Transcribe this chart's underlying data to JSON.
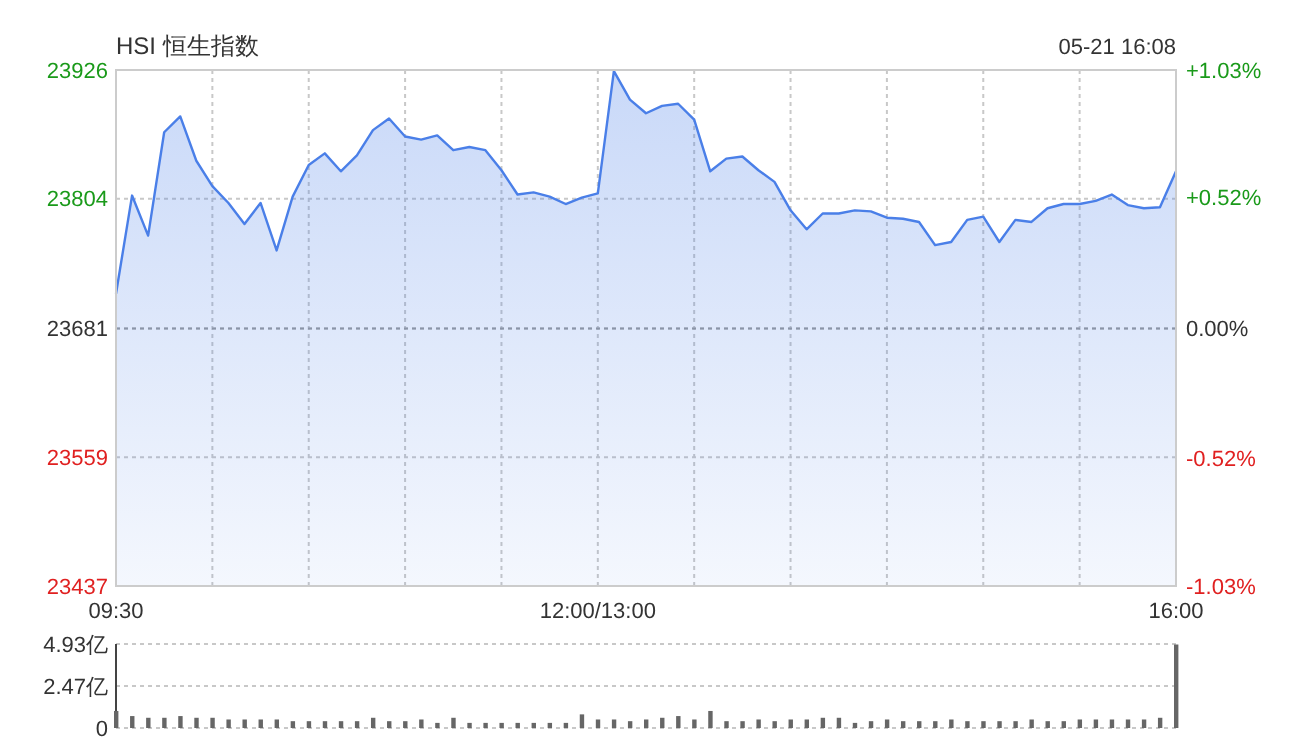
{
  "chart_data": [
    {
      "type": "area",
      "title": "HSI 恒生指数",
      "annotations": [
        "05-21 16:08"
      ],
      "categories": [
        "09:30",
        null,
        null,
        null,
        null,
        null,
        null,
        null,
        null,
        null,
        null,
        null,
        null,
        null,
        null,
        null,
        null,
        null,
        null,
        null,
        null,
        null,
        null,
        null,
        null,
        null,
        null,
        null,
        null,
        null,
        "12:00/13:00",
        null,
        null,
        null,
        null,
        null,
        null,
        null,
        null,
        null,
        null,
        null,
        null,
        null,
        null,
        null,
        null,
        null,
        null,
        null,
        null,
        null,
        null,
        null,
        null,
        null,
        null,
        null,
        null,
        null,
        null,
        null,
        null,
        null,
        null,
        null,
        "16:00"
      ],
      "ylim": [
        23437,
        23926
      ],
      "yticks": [
        23437,
        23559,
        23681,
        23804,
        23926
      ],
      "y2lim": [
        -1.03,
        1.03
      ],
      "y2ticks": [
        {
          "value": -1.03,
          "label": "-1.03%"
        },
        {
          "value": -0.52,
          "label": "-0.52%"
        },
        {
          "value": 0,
          "label": "0.00%"
        },
        {
          "value": 0.52,
          "label": "+0.52%"
        },
        {
          "value": 1.03,
          "label": "+1.03%"
        }
      ],
      "grid": true,
      "ref_lines": [
        {
          "axis": "y",
          "value": 23681,
          "color": "#999999",
          "line_style": "dotted"
        }
      ],
      "series": [
        {
          "color": "#4a7fe8",
          "values": [
            23714,
            23807,
            23769,
            23867,
            23882,
            23840,
            23816,
            23800,
            23780,
            23800,
            23755,
            23806,
            23836,
            23847,
            23830,
            23845,
            23869,
            23880,
            23863,
            23860,
            23864,
            23850,
            23853,
            23850,
            23831,
            23808,
            23810,
            23806,
            23799,
            23805,
            23809,
            23925,
            23898,
            23885,
            23892,
            23894,
            23879,
            23830,
            23842,
            23844,
            23831,
            23820,
            23793,
            23775,
            23790,
            23790,
            23793,
            23792,
            23786,
            23785,
            23782,
            23760,
            23763,
            23784,
            23787,
            23763,
            23784,
            23782,
            23795,
            23799,
            23799,
            23802,
            23808,
            23798,
            23795,
            23796,
            23830
          ]
        }
      ]
    },
    {
      "type": "bar",
      "color": "#666666",
      "tick_labels": "y",
      "grid": "y",
      "categories": [
        null,
        null,
        null,
        null,
        null,
        null,
        null,
        null,
        null,
        null,
        null,
        null,
        null,
        null,
        null,
        null,
        null,
        null,
        null,
        null,
        null,
        null,
        null,
        null,
        null,
        null,
        null,
        null,
        null,
        null,
        null,
        null,
        null,
        null,
        null,
        null,
        null,
        null,
        null,
        null,
        null,
        null,
        null,
        null,
        null,
        null,
        null,
        null,
        null,
        null,
        null,
        null,
        null,
        null,
        null,
        null,
        null,
        null,
        null,
        null,
        null,
        null,
        null,
        null,
        null,
        null,
        null
      ],
      "ylim": [
        0,
        4.93
      ],
      "yticks": [
        0,
        {
          "value": 2.47,
          "label": "2.47亿"
        },
        {
          "value": 4.93,
          "label": "4.93亿"
        }
      ],
      "values": [
        1.0,
        0.7,
        0.6,
        0.6,
        0.7,
        0.6,
        0.6,
        0.5,
        0.5,
        0.5,
        0.5,
        0.4,
        0.4,
        0.4,
        0.4,
        0.4,
        0.6,
        0.4,
        0.4,
        0.5,
        0.3,
        0.6,
        0.3,
        0.3,
        0.3,
        0.3,
        0.3,
        0.3,
        0.3,
        0.8,
        0.5,
        0.5,
        0.4,
        0.5,
        0.6,
        0.7,
        0.5,
        1.0,
        0.4,
        0.4,
        0.5,
        0.4,
        0.5,
        0.5,
        0.6,
        0.6,
        0.3,
        0.4,
        0.5,
        0.4,
        0.4,
        0.4,
        0.5,
        0.4,
        0.4,
        0.4,
        0.4,
        0.5,
        0.4,
        0.4,
        0.5,
        0.5,
        0.5,
        0.5,
        0.5,
        0.6,
        4.9
      ]
    }
  ]
}
